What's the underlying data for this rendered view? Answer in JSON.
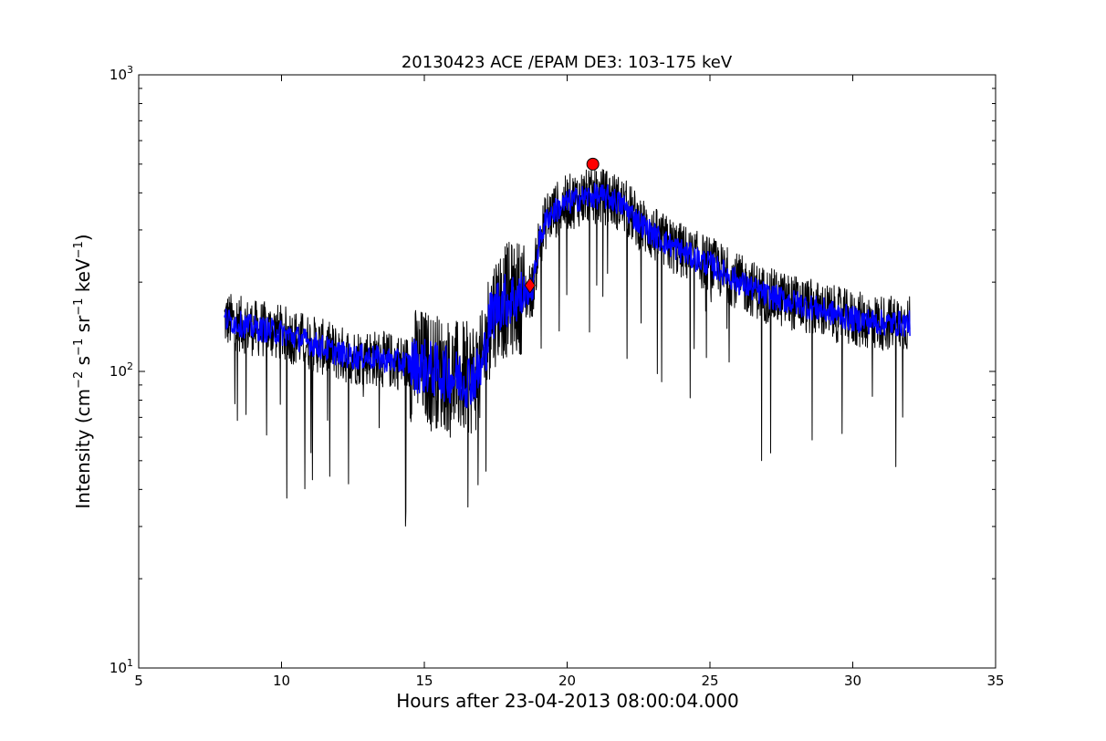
{
  "chart_data": {
    "type": "line",
    "title": "20130423 ACE /EPAM DE3: 103-175 keV",
    "xlabel": "Hours after 23-04-2013 08:00:04.000",
    "ylabel": {
      "main": "Intensity (cm",
      "exp1": "−2",
      "s": " s",
      "exp2": "−1",
      "sr": " sr",
      "exp3": "−1",
      "kev": " keV",
      "exp4": "−1",
      "close": ")"
    },
    "xlim": [
      5,
      35
    ],
    "ylim": [
      10,
      1000
    ],
    "yscale": "log",
    "xticks": [
      5,
      10,
      15,
      20,
      25,
      30,
      35
    ],
    "xtick_labels": [
      "5",
      "10",
      "15",
      "20",
      "25",
      "30",
      "35"
    ],
    "yticks": [
      10,
      100,
      1000
    ],
    "ytick_labels": [
      {
        "base": "10",
        "exp": "1"
      },
      {
        "base": "10",
        "exp": "2"
      },
      {
        "base": "10",
        "exp": "3"
      }
    ],
    "grid": false,
    "series": [
      {
        "color": "#000000",
        "style": "raw-noisy",
        "x": [
          8.0,
          8.5,
          9.0,
          9.5,
          10.0,
          10.5,
          11.0,
          11.5,
          12.0,
          12.5,
          13.0,
          13.5,
          14.0,
          14.5,
          15.0,
          15.5,
          16.0,
          16.5,
          17.0,
          17.3,
          17.6,
          18.0,
          18.5,
          18.8,
          19.0,
          19.3,
          19.6,
          20.0,
          20.5,
          21.0,
          21.5,
          22.0,
          22.5,
          23.0,
          23.5,
          24.0,
          24.5,
          25.0,
          25.5,
          26.0,
          26.5,
          27.0,
          27.5,
          28.0,
          28.5,
          29.0,
          29.5,
          30.0,
          30.5,
          31.0,
          31.5,
          32.0
        ],
        "y": [
          150,
          145,
          140,
          138,
          135,
          130,
          125,
          120,
          115,
          112,
          112,
          110,
          108,
          106,
          104,
          100,
          96,
          94,
          100,
          150,
          170,
          175,
          180,
          190,
          270,
          330,
          350,
          370,
          385,
          390,
          385,
          360,
          320,
          290,
          270,
          255,
          240,
          230,
          215,
          200,
          190,
          180,
          175,
          170,
          165,
          160,
          155,
          150,
          148,
          146,
          145,
          145
        ]
      },
      {
        "color": "#0000ff",
        "style": "smoothed",
        "x": [
          8.0,
          8.5,
          9.0,
          9.5,
          10.0,
          10.5,
          11.0,
          11.5,
          12.0,
          12.5,
          13.0,
          13.5,
          14.0,
          14.5,
          15.0,
          15.5,
          16.0,
          16.5,
          17.0,
          17.3,
          17.6,
          18.0,
          18.5,
          18.8,
          19.0,
          19.3,
          19.6,
          20.0,
          20.5,
          21.0,
          21.5,
          22.0,
          22.5,
          23.0,
          23.5,
          24.0,
          24.5,
          25.0,
          25.5,
          26.0,
          26.5,
          27.0,
          27.5,
          28.0,
          28.5,
          29.0,
          29.5,
          30.0,
          30.5,
          31.0,
          31.5,
          32.0
        ],
        "y": [
          150,
          145,
          140,
          138,
          135,
          130,
          125,
          120,
          115,
          112,
          112,
          110,
          108,
          106,
          104,
          100,
          96,
          94,
          100,
          150,
          170,
          175,
          180,
          190,
          270,
          330,
          350,
          370,
          385,
          390,
          385,
          360,
          320,
          290,
          270,
          255,
          240,
          230,
          215,
          200,
          190,
          180,
          175,
          170,
          165,
          160,
          155,
          150,
          148,
          146,
          145,
          145
        ]
      }
    ],
    "markers": [
      {
        "shape": "diamond",
        "color": "#ff0000",
        "x": 18.7,
        "y": 195
      },
      {
        "shape": "circle",
        "color": "#ff0000",
        "x": 20.9,
        "y": 500
      }
    ]
  }
}
